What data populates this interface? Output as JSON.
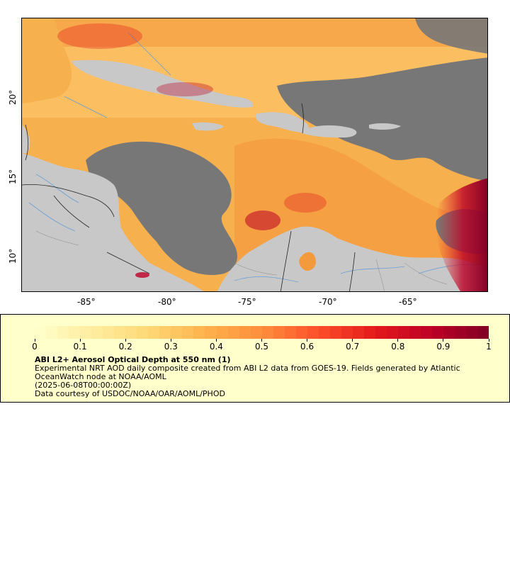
{
  "map": {
    "lon_ticks": [
      "-85°",
      "-80°",
      "-75°",
      "-70°",
      "-65°"
    ],
    "lat_ticks": [
      "20°",
      "15°",
      "10°"
    ],
    "colors": {
      "land": "#c8c8c8",
      "no_data": "#777777",
      "rivers": "#6a9fd4",
      "borders": "#222222",
      "admin": "#8a8a8a"
    }
  },
  "legend": {
    "tick_labels": [
      "0",
      "0.1",
      "0.2",
      "0.3",
      "0.4",
      "0.5",
      "0.6",
      "0.7",
      "0.8",
      "0.9",
      "1"
    ],
    "colors": [
      "#ffffcc",
      "#ffeda0",
      "#fed976",
      "#feb24c",
      "#fd8d3c",
      "#fc4e2a",
      "#e31a1c",
      "#bd0026",
      "#800026"
    ],
    "title": "ABI L2+ Aerosol Optical Depth at 550 nm (1)",
    "line1": "Experimental NRT AOD daily composite created from ABI L2 data from GOES-19. Fields generated by Atlantic OceanWatch node at NOAA/AOML",
    "line2": "(2025-06-08T00:00:00Z)",
    "line3": "Data courtesy of USDOC/NOAA/OAR/AOML/PHOD"
  }
}
